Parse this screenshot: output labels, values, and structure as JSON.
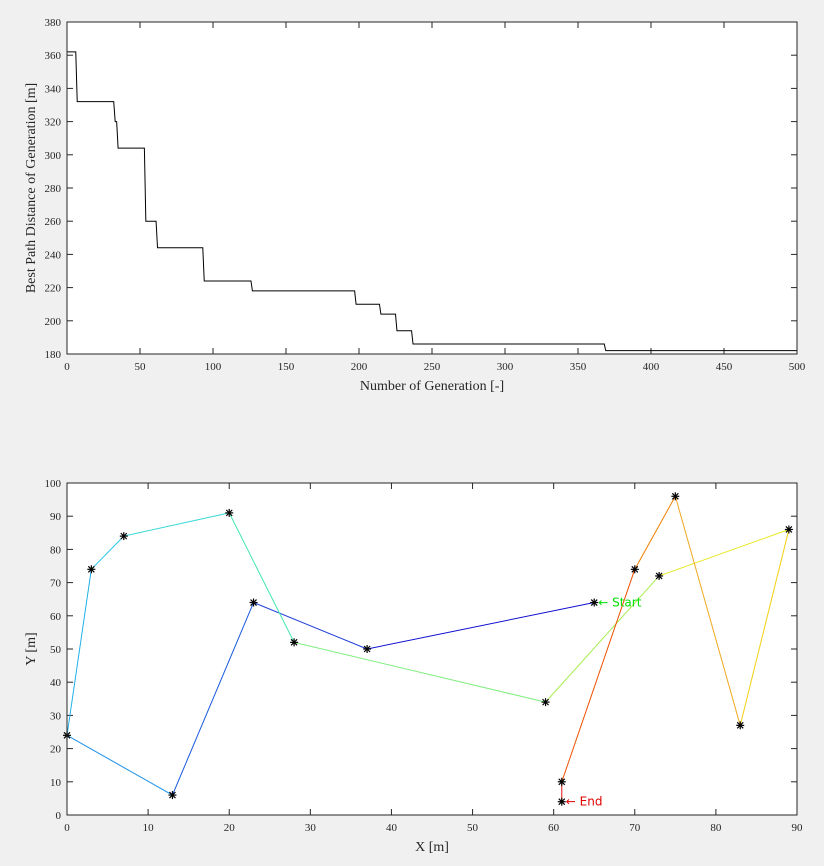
{
  "colors": {
    "figure_bg": "#f0f0f0",
    "axes_bg": "#ffffff",
    "axis": "#262626",
    "convergence_line": "#000000",
    "marker": "#000000",
    "start_label": "#00e000",
    "end_label": "#e00000"
  },
  "chart_data": [
    {
      "type": "line",
      "xlabel": "Number of Generation [-]",
      "ylabel": "Best Path Distance of Generation [m]",
      "xlim": [
        0,
        500
      ],
      "ylim": [
        180,
        380
      ],
      "xticks": [
        0,
        50,
        100,
        150,
        200,
        250,
        300,
        350,
        400,
        450,
        500
      ],
      "yticks": [
        180,
        200,
        220,
        240,
        260,
        280,
        300,
        320,
        340,
        360,
        380
      ],
      "grid": false,
      "series": [
        {
          "x": [
            0,
            6,
            7,
            32,
            33,
            34,
            35,
            53,
            54,
            61,
            62,
            93,
            94,
            126,
            127,
            197,
            198,
            214,
            215,
            225,
            226,
            236,
            237,
            368,
            369,
            500
          ],
          "y": [
            362,
            362,
            332,
            332,
            320,
            320,
            304,
            304,
            260,
            260,
            244,
            244,
            224,
            224,
            218,
            218,
            210,
            210,
            204,
            204,
            194,
            194,
            186,
            186,
            182,
            182
          ]
        }
      ]
    },
    {
      "type": "line",
      "xlabel": "X [m]",
      "ylabel": "Y [m]",
      "xlim": [
        0,
        90
      ],
      "ylim": [
        0,
        100
      ],
      "xticks": [
        0,
        10,
        20,
        30,
        40,
        50,
        60,
        70,
        80,
        90
      ],
      "yticks": [
        0,
        10,
        20,
        30,
        40,
        50,
        60,
        70,
        80,
        90,
        100
      ],
      "grid": false,
      "path": [
        [
          65,
          64
        ],
        [
          37,
          50
        ],
        [
          23,
          64
        ],
        [
          13,
          6
        ],
        [
          0,
          24
        ],
        [
          3,
          74
        ],
        [
          7,
          84
        ],
        [
          20,
          91
        ],
        [
          28,
          52
        ],
        [
          59,
          34
        ],
        [
          73,
          72
        ],
        [
          89,
          86
        ],
        [
          83,
          27
        ],
        [
          75,
          96
        ],
        [
          70,
          74
        ],
        [
          61,
          10
        ],
        [
          61,
          4
        ]
      ],
      "segment_colors": [
        "#1010d0",
        "#2040d8",
        "#1858e0",
        "#1a90e8",
        "#20b0e8",
        "#28c8e8",
        "#38d8d8",
        "#40e8b0",
        "#80ee80",
        "#a8ee50",
        "#e8e820",
        "#f4d010",
        "#f0a820",
        "#f08000",
        "#f05000",
        "#e81010"
      ],
      "annotations": [
        {
          "label": "← Start",
          "x": 65,
          "y": 64
        },
        {
          "label": "← End",
          "x": 61,
          "y": 4
        }
      ]
    }
  ]
}
